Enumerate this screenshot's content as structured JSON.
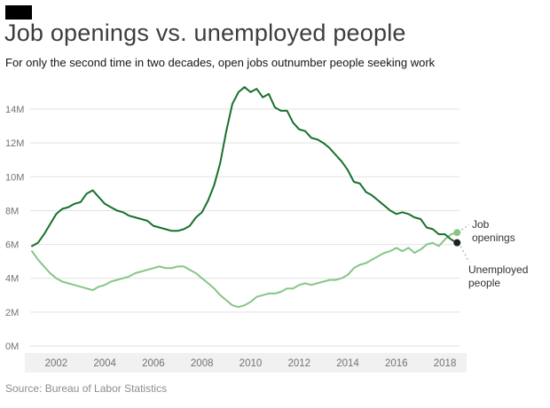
{
  "page": {
    "title": "Job openings vs. unemployed people",
    "subtitle": "For only the second time in two decades, open jobs outnumber people seeking work",
    "source": "Source: Bureau of Labor Statistics"
  },
  "annotations": {
    "job_openings": {
      "line1": "Job",
      "line2": "openings"
    },
    "unemployed": {
      "line1": "Unemployed",
      "line2": "people"
    }
  },
  "colors": {
    "dark_series": "#17702b",
    "light_series": "#86c687",
    "grid": "#e2e2e2",
    "band": "#f1f1f1",
    "axis_text": "#737373",
    "connector": "#9b9b9b",
    "openings_dot": "#86c687",
    "unemployed_dot": "#1f1f1f",
    "title_text": "#3d3d3d",
    "subtitle_text": "#141414",
    "source_text": "#8d8d8d",
    "logo": "#000000"
  },
  "chart_data": {
    "type": "line",
    "title": "Job openings vs. unemployed people",
    "subtitle": "For only the second time in two decades, open jobs outnumber people seeking work",
    "xlabel": "",
    "ylabel": "",
    "ylim": [
      0,
      16
    ],
    "grid": true,
    "legend_position": "end-of-line-labels",
    "ytick_values": [
      0,
      2,
      4,
      6,
      8,
      10,
      12,
      14
    ],
    "ytick_labels": [
      "0M",
      "2M",
      "4M",
      "6M",
      "8M",
      "10M",
      "12M",
      "14M"
    ],
    "xtick_values": [
      2002,
      2004,
      2006,
      2008,
      2010,
      2012,
      2014,
      2016,
      2018
    ],
    "xtick_labels": [
      "2002",
      "2004",
      "2006",
      "2008",
      "2010",
      "2012",
      "2014",
      "2016",
      "2018"
    ],
    "x": [
      2001,
      2001.25,
      2001.5,
      2001.75,
      2002,
      2002.25,
      2002.5,
      2002.75,
      2003,
      2003.25,
      2003.5,
      2003.75,
      2004,
      2004.25,
      2004.5,
      2004.75,
      2005,
      2005.25,
      2005.5,
      2005.75,
      2006,
      2006.25,
      2006.5,
      2006.75,
      2007,
      2007.25,
      2007.5,
      2007.75,
      2008,
      2008.25,
      2008.5,
      2008.75,
      2009,
      2009.25,
      2009.5,
      2009.75,
      2010,
      2010.25,
      2010.5,
      2010.75,
      2011,
      2011.25,
      2011.5,
      2011.75,
      2012,
      2012.25,
      2012.5,
      2012.75,
      2013,
      2013.25,
      2013.5,
      2013.75,
      2014,
      2014.25,
      2014.5,
      2014.75,
      2015,
      2015.25,
      2015.5,
      2015.75,
      2016,
      2016.25,
      2016.5,
      2016.75,
      2017,
      2017.25,
      2017.5,
      2017.75,
      2018,
      2018.25,
      2018.5
    ],
    "series": [
      {
        "name": "Unemployed people",
        "color": "#17702b",
        "values": [
          5.9,
          6.1,
          6.6,
          7.2,
          7.8,
          8.1,
          8.2,
          8.4,
          8.5,
          9.0,
          9.2,
          8.8,
          8.4,
          8.2,
          8.0,
          7.9,
          7.7,
          7.6,
          7.5,
          7.4,
          7.1,
          7.0,
          6.9,
          6.8,
          6.8,
          6.9,
          7.1,
          7.6,
          7.9,
          8.6,
          9.5,
          10.8,
          12.7,
          14.3,
          15.0,
          15.3,
          15.0,
          15.2,
          14.7,
          14.9,
          14.1,
          13.9,
          13.9,
          13.2,
          12.8,
          12.7,
          12.3,
          12.2,
          12.0,
          11.7,
          11.3,
          10.9,
          10.4,
          9.7,
          9.6,
          9.1,
          8.9,
          8.6,
          8.3,
          8.0,
          7.8,
          7.9,
          7.8,
          7.6,
          7.5,
          7.0,
          6.9,
          6.6,
          6.6,
          6.3,
          6.1
        ]
      },
      {
        "name": "Job openings",
        "color": "#86c687",
        "values": [
          5.6,
          5.1,
          4.7,
          4.3,
          4.0,
          3.8,
          3.7,
          3.6,
          3.5,
          3.4,
          3.3,
          3.5,
          3.6,
          3.8,
          3.9,
          4.0,
          4.1,
          4.3,
          4.4,
          4.5,
          4.6,
          4.7,
          4.6,
          4.6,
          4.7,
          4.7,
          4.5,
          4.3,
          4.0,
          3.7,
          3.4,
          3.0,
          2.7,
          2.4,
          2.3,
          2.4,
          2.6,
          2.9,
          3.0,
          3.1,
          3.1,
          3.2,
          3.4,
          3.4,
          3.6,
          3.7,
          3.6,
          3.7,
          3.8,
          3.9,
          3.9,
          4.0,
          4.2,
          4.6,
          4.8,
          4.9,
          5.1,
          5.3,
          5.5,
          5.6,
          5.8,
          5.6,
          5.8,
          5.5,
          5.7,
          6.0,
          6.1,
          5.9,
          6.3,
          6.6,
          6.7
        ]
      }
    ]
  }
}
